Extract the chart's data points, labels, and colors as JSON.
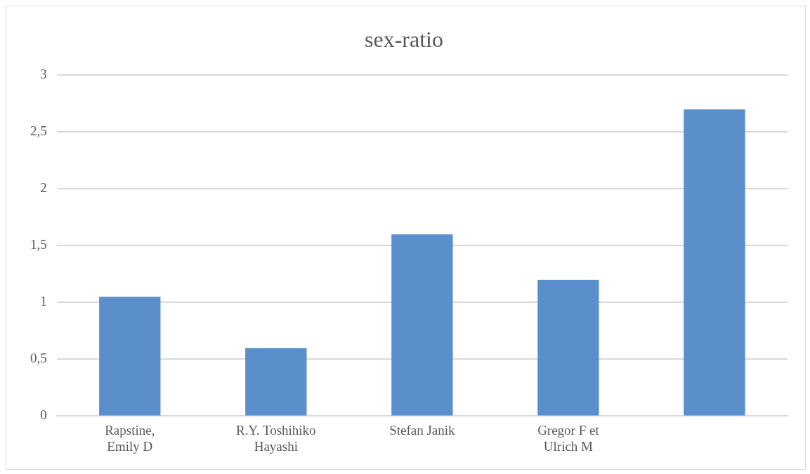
{
  "chart_data": {
    "type": "bar",
    "title": "sex-ratio",
    "categories": [
      "Rapstine, Emily D",
      "R.Y. Toshihiko Hayashi",
      "Stefan Janik",
      "Gregor F et Ulrich M",
      null
    ],
    "values": [
      1.05,
      0.6,
      1.6,
      1.2,
      2.7
    ],
    "color": "#5b8fcc",
    "ylim": [
      0,
      3
    ],
    "yticks": [
      0,
      {
        "value": 0.5,
        "label": "0,5"
      },
      1,
      {
        "value": 1.5,
        "label": "1,5"
      },
      2,
      {
        "value": 2.5,
        "label": "2,5"
      },
      3
    ],
    "grid": "y",
    "legend": false
  }
}
